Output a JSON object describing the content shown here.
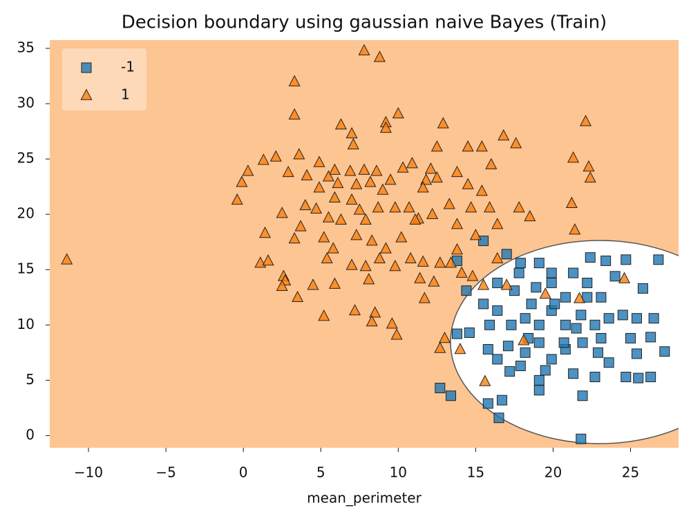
{
  "chart_data": {
    "type": "scatter",
    "title": "Decision boundary using gaussian naive Bayes (Train)",
    "x_label": "mean_perimeter",
    "xlim": [
      -12.5,
      28.1
    ],
    "ylim": [
      -1.1,
      35.75
    ],
    "xticks": [
      {
        "value": -10,
        "label": "−10"
      },
      {
        "value": -5,
        "label": "−5"
      },
      0,
      5,
      10,
      15,
      20,
      25
    ],
    "yticks": [
      0,
      5,
      10,
      15,
      20,
      25,
      30,
      35
    ],
    "legend": "upper left",
    "series": [
      {
        "name": "-1",
        "color": "#1f77b4",
        "marker": "square",
        "x": [
          12.7,
          13.4,
          15.8,
          16.7,
          16.5,
          21.8,
          13.8,
          15.5,
          17.0,
          17.9,
          14.4,
          13.8,
          14.6,
          15.8,
          17.2,
          19.1,
          19.1,
          21.9,
          22.7,
          24.7,
          25.5,
          26.3,
          27.2,
          25.4,
          25.0,
          26.3,
          26.5,
          25.8,
          26.8,
          24.7,
          23.4,
          22.4,
          19.1,
          16.4,
          17.5,
          18.6,
          19.9,
          20.8,
          22.2,
          23.1,
          24.0,
          16.4,
          17.3,
          18.2,
          19.1,
          19.9,
          20.8,
          21.8,
          22.7,
          23.6,
          17.1,
          18.2,
          19.1,
          19.9,
          20.8,
          21.9,
          22.9,
          23.6,
          19.5,
          21.3,
          15.5,
          15.9,
          18.4,
          20.7,
          22.2,
          24.5,
          25.4,
          23.1,
          19.9,
          21.3,
          17.8,
          18.9,
          20.1,
          21.5,
          17.9,
          16.4
        ],
        "y": [
          4.3,
          3.6,
          2.9,
          3.2,
          1.6,
          -0.3,
          15.8,
          17.6,
          16.4,
          15.6,
          13.1,
          9.2,
          9.3,
          7.8,
          5.8,
          4.1,
          5.0,
          3.6,
          5.3,
          5.3,
          5.2,
          5.3,
          7.6,
          7.4,
          8.8,
          8.9,
          10.6,
          13.3,
          15.9,
          15.9,
          15.8,
          16.1,
          15.6,
          13.8,
          13.1,
          11.9,
          13.8,
          12.5,
          13.8,
          12.5,
          14.4,
          11.3,
          10.0,
          10.6,
          10.0,
          11.3,
          10.0,
          10.9,
          10.0,
          10.6,
          8.1,
          7.5,
          8.4,
          6.9,
          7.8,
          8.4,
          7.5,
          6.6,
          5.9,
          5.6,
          11.9,
          10.0,
          8.8,
          8.4,
          12.5,
          10.9,
          10.6,
          8.8,
          14.7,
          14.7,
          14.7,
          13.4,
          11.9,
          9.7,
          6.3,
          6.9
        ]
      },
      {
        "name": "1",
        "color": "#ff7f0e",
        "marker": "triangle",
        "x": [
          -11.4,
          7.8,
          8.8,
          3.3,
          3.3,
          10.0,
          9.2,
          9.2,
          12.9,
          6.3,
          7.0,
          7.1,
          22.1,
          16.8,
          17.6,
          15.4,
          14.5,
          12.5,
          21.3,
          22.3,
          22.4,
          21.2,
          21.4,
          0.3,
          -0.1,
          -0.4,
          1.3,
          2.1,
          3.6,
          2.9,
          4.1,
          4.9,
          2.5,
          1.4,
          3.7,
          4.0,
          3.3,
          5.2,
          5.8,
          7.0,
          7.5,
          7.9,
          8.7,
          9.8,
          10.7,
          11.3,
          12.2,
          13.3,
          13.8,
          14.7,
          15.9,
          17.8,
          18.5,
          16.4,
          15.0,
          13.8,
          12.7,
          11.6,
          10.8,
          9.8,
          8.8,
          7.9,
          7.0,
          5.4,
          1.1,
          1.6,
          2.6,
          2.7,
          2.5,
          4.5,
          3.5,
          5.9,
          8.1,
          11.4,
          12.3,
          11.7,
          14.1,
          14.8,
          16.4,
          5.2,
          7.2,
          8.5,
          8.3,
          9.6,
          9.9,
          13.0,
          12.7,
          14.0,
          15.6,
          15.5,
          17.0,
          18.1,
          19.5,
          21.7,
          24.6,
          9.5,
          10.3,
          10.9,
          11.8,
          12.1,
          11.6,
          12.5,
          13.8,
          14.5,
          15.4,
          16.0,
          5.9,
          6.9,
          7.8,
          8.6,
          5.5,
          4.9,
          6.1,
          7.3,
          8.2,
          9.0,
          5.9,
          5.5,
          6.3,
          4.7,
          7.3,
          8.3,
          9.2,
          10.2,
          11.1,
          13.4
        ],
        "y": [
          15.9,
          34.8,
          34.2,
          32.0,
          29.0,
          29.1,
          28.3,
          27.8,
          28.2,
          28.1,
          27.3,
          26.3,
          28.4,
          27.1,
          26.4,
          26.1,
          26.1,
          26.1,
          25.1,
          24.3,
          23.3,
          21.0,
          18.6,
          23.9,
          22.9,
          21.3,
          24.9,
          25.2,
          25.4,
          23.8,
          23.5,
          24.7,
          20.1,
          18.3,
          18.9,
          20.8,
          17.8,
          17.9,
          16.9,
          21.3,
          20.4,
          19.5,
          20.6,
          20.6,
          20.6,
          19.6,
          20.0,
          20.9,
          19.1,
          20.6,
          20.6,
          20.6,
          19.8,
          19.1,
          18.1,
          16.8,
          15.6,
          15.7,
          16.0,
          15.3,
          16.0,
          15.3,
          15.4,
          16.0,
          15.6,
          15.8,
          14.4,
          14.0,
          13.5,
          13.6,
          12.5,
          13.7,
          14.1,
          14.2,
          13.9,
          12.4,
          14.7,
          14.4,
          16.0,
          10.8,
          11.3,
          11.1,
          10.3,
          10.1,
          9.1,
          8.8,
          7.9,
          7.8,
          4.9,
          13.6,
          13.6,
          8.6,
          12.8,
          12.4,
          14.2,
          23.1,
          24.2,
          24.6,
          23.1,
          24.1,
          22.4,
          23.3,
          23.8,
          22.7,
          22.1,
          24.5,
          24.0,
          23.9,
          24.0,
          23.9,
          23.4,
          22.4,
          22.8,
          22.7,
          22.9,
          22.2,
          21.5,
          19.7,
          19.5,
          20.5,
          18.1,
          17.6,
          16.9,
          17.9,
          19.5,
          15.6
        ]
      }
    ]
  }
}
